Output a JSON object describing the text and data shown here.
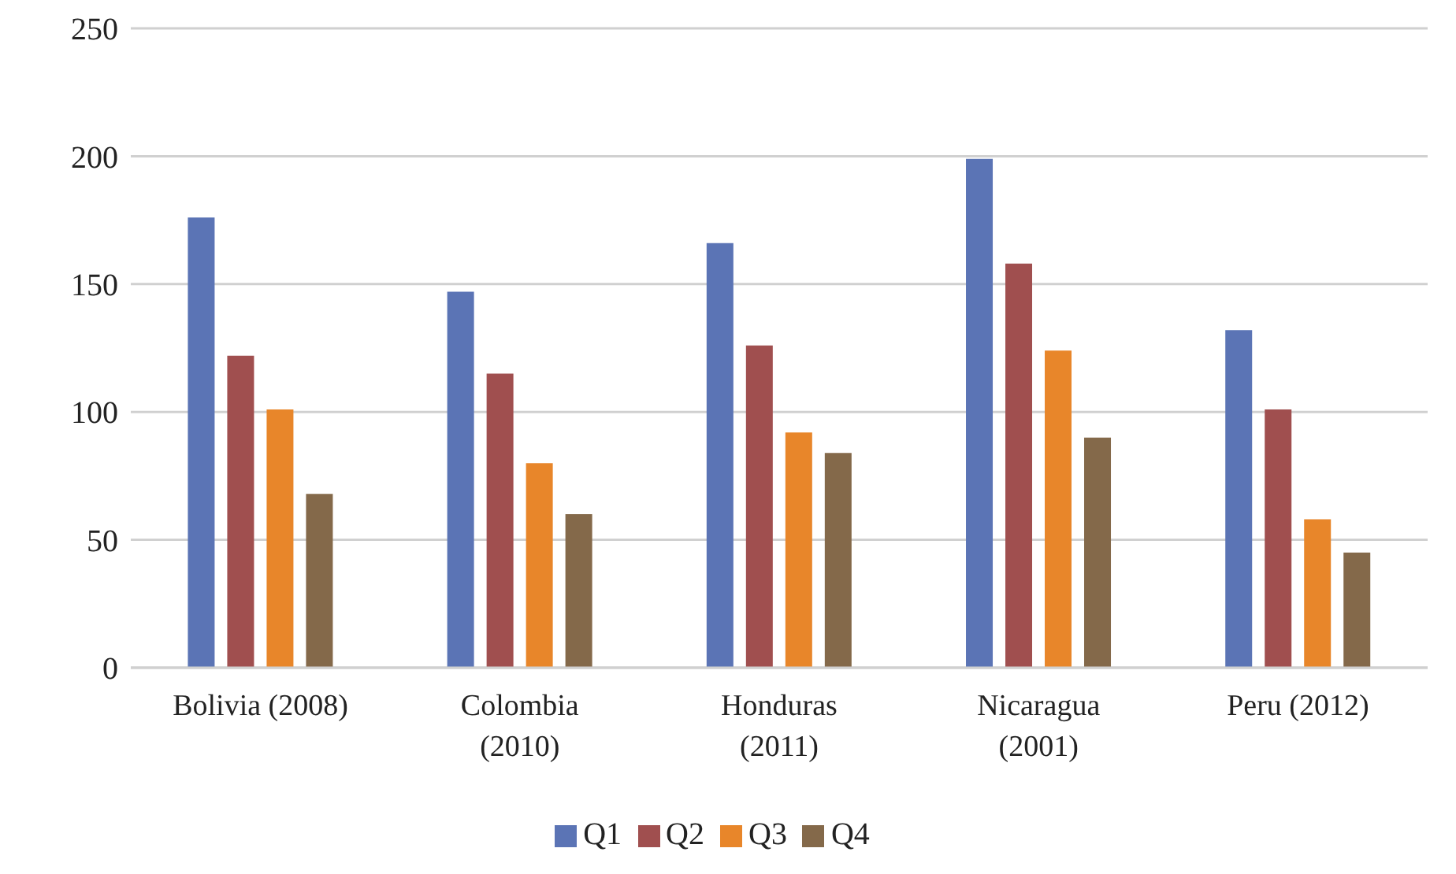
{
  "chart_data": {
    "type": "bar",
    "categories": [
      "Bolivia (2008)",
      "Colombia (2010)",
      "Honduras (2011)",
      "Nicaragua (2001)",
      "Peru (2012)"
    ],
    "series": [
      {
        "name": "Q1",
        "color": "#5b74b5",
        "values": [
          176,
          147,
          166,
          199,
          132
        ]
      },
      {
        "name": "Q2",
        "color": "#a04f4f",
        "values": [
          122,
          115,
          126,
          158,
          101
        ]
      },
      {
        "name": "Q3",
        "color": "#e8862a",
        "values": [
          101,
          80,
          92,
          124,
          58
        ]
      },
      {
        "name": "Q4",
        "color": "#84694a",
        "values": [
          68,
          60,
          84,
          90,
          45
        ]
      }
    ],
    "ylim": [
      0,
      250
    ],
    "yticks": [
      0,
      50,
      100,
      150,
      200,
      250
    ],
    "grid": "y",
    "legend": "bottom"
  }
}
